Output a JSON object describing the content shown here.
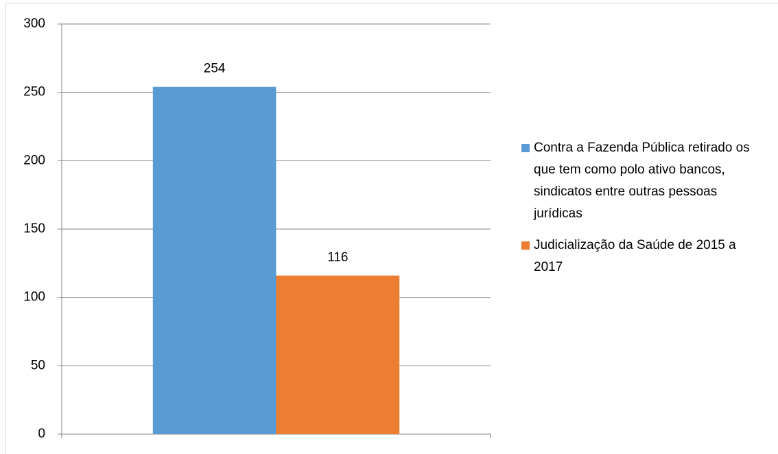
{
  "chart_data": {
    "type": "bar",
    "categories": [
      null
    ],
    "series": [
      {
        "name": "Contra a Fazenda Pública retirado os que tem como polo ativo bancos, sindicatos entre outras pessoas jurídicas",
        "color": "#5b9bd5",
        "values": [
          254
        ]
      },
      {
        "name": "Judicialização da Saúde de 2015 a 2017",
        "color": "#ed7d31",
        "values": [
          116
        ]
      }
    ],
    "ylim": [
      0,
      300
    ],
    "yticks": [
      0,
      50,
      100,
      150,
      200,
      250,
      300
    ],
    "grid": true,
    "legend": "right"
  }
}
